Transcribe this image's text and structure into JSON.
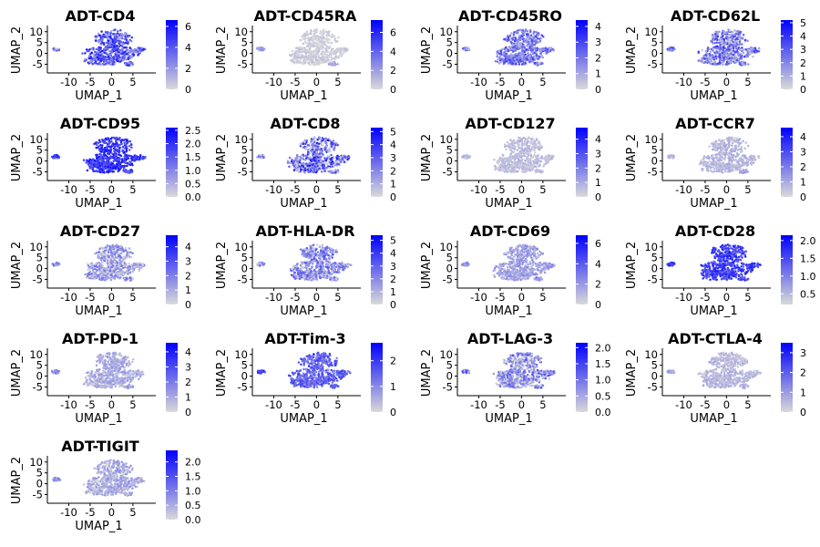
{
  "figure": {
    "domain": "UMAP feature plots of ADT markers"
  },
  "colors": {
    "low": "#d9d9d9",
    "high": "#0000ff",
    "axis": "#000000"
  },
  "chart_data": [
    {
      "type": "scatter",
      "title": "ADT-CD4",
      "xlabel": "UMAP_1",
      "ylabel": "UMAP_2",
      "xticks": [
        "-10",
        "-5",
        "0",
        "5"
      ],
      "yticks": [
        "10",
        "5",
        "0",
        "-5"
      ],
      "xlim": [
        -15,
        9.5
      ],
      "ylim": [
        -9,
        12
      ],
      "colorbar": {
        "min": 0,
        "max": 6.6,
        "ticks": [
          "6",
          "4",
          "2",
          "0"
        ],
        "tick_values": [
          6,
          4,
          2,
          0
        ]
      },
      "intensity": {
        "main": 0.55,
        "left": 0.3,
        "small": 0.45,
        "variation": 0.35
      }
    },
    {
      "type": "scatter",
      "title": "ADT-CD45RA",
      "xlabel": "UMAP_1",
      "ylabel": "UMAP_2",
      "xticks": [
        "-10",
        "-5",
        "0",
        "5"
      ],
      "yticks": [
        "10",
        "5",
        "0",
        "-5"
      ],
      "xlim": [
        -15,
        9.5
      ],
      "ylim": [
        -9,
        12
      ],
      "colorbar": {
        "min": 0,
        "max": 7.3,
        "ticks": [
          "6",
          "4",
          "2",
          "0"
        ],
        "tick_values": [
          6,
          4,
          2,
          0
        ]
      },
      "intensity": {
        "main": 0.05,
        "left": 0.3,
        "small": 0.2,
        "variation": 0.08
      }
    },
    {
      "type": "scatter",
      "title": "ADT-CD45RO",
      "xlabel": "UMAP_1",
      "ylabel": "UMAP_2",
      "xticks": [
        "-10",
        "-5",
        "0",
        "5"
      ],
      "yticks": [
        "10",
        "5",
        "0",
        "-5"
      ],
      "xlim": [
        -15,
        9.5
      ],
      "ylim": [
        -9,
        12
      ],
      "colorbar": {
        "min": 0,
        "max": 4.4,
        "ticks": [
          "4",
          "3",
          "2",
          "1",
          "0"
        ],
        "tick_values": [
          4,
          3,
          2,
          1,
          0
        ]
      },
      "intensity": {
        "main": 0.45,
        "left": 0.35,
        "small": 0.4,
        "variation": 0.3
      }
    },
    {
      "type": "scatter",
      "title": "ADT-CD62L",
      "xlabel": "UMAP_1",
      "ylabel": "UMAP_2",
      "xticks": [
        "-10",
        "-5",
        "0",
        "5"
      ],
      "yticks": [
        "10",
        "5",
        "0",
        "-5"
      ],
      "xlim": [
        -15,
        9.5
      ],
      "ylim": [
        -9,
        12
      ],
      "colorbar": {
        "min": 0,
        "max": 5.2,
        "ticks": [
          "5",
          "4",
          "3",
          "2",
          "1",
          "0"
        ],
        "tick_values": [
          5,
          4,
          3,
          2,
          1,
          0
        ]
      },
      "intensity": {
        "main": 0.4,
        "left": 0.35,
        "small": 0.45,
        "variation": 0.35
      }
    },
    {
      "type": "scatter",
      "title": "ADT-CD95",
      "xlabel": "UMAP_1",
      "ylabel": "UMAP_2",
      "xticks": [
        "-10",
        "-5",
        "0",
        "5"
      ],
      "yticks": [
        "10",
        "5",
        "0",
        "-5"
      ],
      "xlim": [
        -15,
        9.5
      ],
      "ylim": [
        -9,
        12
      ],
      "colorbar": {
        "min": 0,
        "max": 2.6,
        "ticks": [
          "2.5",
          "2.0",
          "1.5",
          "1.0",
          "0.5",
          "0.0"
        ],
        "tick_values": [
          2.5,
          2.0,
          1.5,
          1.0,
          0.5,
          0.0
        ]
      },
      "intensity": {
        "main": 0.75,
        "left": 0.65,
        "small": 0.6,
        "variation": 0.2
      }
    },
    {
      "type": "scatter",
      "title": "ADT-CD8",
      "xlabel": "UMAP_1",
      "ylabel": "UMAP_2",
      "xticks": [
        "-10",
        "-5",
        "0",
        "5"
      ],
      "yticks": [
        "10",
        "5",
        "0",
        "-5"
      ],
      "xlim": [
        -15,
        9.5
      ],
      "ylim": [
        -9,
        12
      ],
      "colorbar": {
        "min": 0,
        "max": 5.3,
        "ticks": [
          "5",
          "4",
          "3",
          "2",
          "1",
          "0"
        ],
        "tick_values": [
          5,
          4,
          3,
          2,
          1,
          0
        ]
      },
      "intensity": {
        "main": 0.45,
        "left": 0.3,
        "small": 0.4,
        "variation": 0.5
      }
    },
    {
      "type": "scatter",
      "title": "ADT-CD127",
      "xlabel": "UMAP_1",
      "ylabel": "UMAP_2",
      "xticks": [
        "-10",
        "-5",
        "0",
        "5"
      ],
      "yticks": [
        "10",
        "5",
        "0",
        "-5"
      ],
      "xlim": [
        -15,
        9.5
      ],
      "ylim": [
        -9,
        12
      ],
      "colorbar": {
        "min": 0,
        "max": 4.8,
        "ticks": [
          "4",
          "3",
          "2",
          "1",
          "0"
        ],
        "tick_values": [
          4,
          3,
          2,
          1,
          0
        ]
      },
      "intensity": {
        "main": 0.12,
        "left": 0.15,
        "small": 0.15,
        "variation": 0.08
      }
    },
    {
      "type": "scatter",
      "title": "ADT-CCR7",
      "xlabel": "UMAP_1",
      "ylabel": "UMAP_2",
      "xticks": [
        "-10",
        "-5",
        "0",
        "5"
      ],
      "yticks": [
        "10",
        "5",
        "0",
        "-5"
      ],
      "xlim": [
        -15,
        9.5
      ],
      "ylim": [
        -9,
        12
      ],
      "colorbar": {
        "min": 0,
        "max": 4.6,
        "ticks": [
          "4",
          "3",
          "2",
          "1",
          "0"
        ],
        "tick_values": [
          4,
          3,
          2,
          1,
          0
        ]
      },
      "intensity": {
        "main": 0.15,
        "left": 0.2,
        "small": 0.2,
        "variation": 0.1
      }
    },
    {
      "type": "scatter",
      "title": "ADT-CD27",
      "xlabel": "UMAP_1",
      "ylabel": "UMAP_2",
      "xticks": [
        "-10",
        "-5",
        "0",
        "5"
      ],
      "yticks": [
        "10",
        "5",
        "0",
        "-5"
      ],
      "xlim": [
        -15,
        9.5
      ],
      "ylim": [
        -9,
        12
      ],
      "colorbar": {
        "min": 0,
        "max": 4.8,
        "ticks": [
          "4",
          "3",
          "2",
          "1",
          "0"
        ],
        "tick_values": [
          4,
          3,
          2,
          1,
          0
        ]
      },
      "intensity": {
        "main": 0.25,
        "left": 0.35,
        "small": 0.3,
        "variation": 0.25
      }
    },
    {
      "type": "scatter",
      "title": "ADT-HLA-DR",
      "xlabel": "UMAP_1",
      "ylabel": "UMAP_2",
      "xticks": [
        "-10",
        "-5",
        "0",
        "5"
      ],
      "yticks": [
        "10",
        "5",
        "0",
        "-5"
      ],
      "xlim": [
        -15,
        9.5
      ],
      "ylim": [
        -9,
        12
      ],
      "colorbar": {
        "min": 0,
        "max": 5.4,
        "ticks": [
          "5",
          "4",
          "3",
          "2",
          "1",
          "0"
        ],
        "tick_values": [
          5,
          4,
          3,
          2,
          1,
          0
        ]
      },
      "intensity": {
        "main": 0.35,
        "left": 0.3,
        "small": 0.3,
        "variation": 0.3
      }
    },
    {
      "type": "scatter",
      "title": "ADT-CD69",
      "xlabel": "UMAP_1",
      "ylabel": "UMAP_2",
      "xticks": [
        "-10",
        "-5",
        "0",
        "5"
      ],
      "yticks": [
        "10",
        "5",
        "0",
        "-5"
      ],
      "xlim": [
        -15,
        9.5
      ],
      "ylim": [
        -9,
        12
      ],
      "colorbar": {
        "min": 0,
        "max": 6.8,
        "ticks": [
          "6",
          "4",
          "2",
          "0"
        ],
        "tick_values": [
          6,
          4,
          2,
          0
        ]
      },
      "intensity": {
        "main": 0.25,
        "left": 0.3,
        "small": 0.3,
        "variation": 0.15
      }
    },
    {
      "type": "scatter",
      "title": "ADT-CD28",
      "xlabel": "UMAP_1",
      "ylabel": "UMAP_2",
      "xticks": [
        "-10",
        "-5",
        "0",
        "5"
      ],
      "yticks": [
        "10",
        "5",
        "0",
        "-5"
      ],
      "xlim": [
        -15,
        9.5
      ],
      "ylim": [
        -9,
        12
      ],
      "colorbar": {
        "min": 0.2,
        "max": 2.15,
        "ticks": [
          "2.0",
          "1.5",
          "1.0",
          "0.5"
        ],
        "tick_values": [
          2.0,
          1.5,
          1.0,
          0.5
        ]
      },
      "intensity": {
        "main": 0.7,
        "left": 0.75,
        "small": 0.65,
        "variation": 0.2
      }
    },
    {
      "type": "scatter",
      "title": "ADT-PD-1",
      "xlabel": "UMAP_1",
      "ylabel": "UMAP_2",
      "xticks": [
        "-10",
        "-5",
        "0",
        "5"
      ],
      "yticks": [
        "10",
        "5",
        "0",
        "-5"
      ],
      "xlim": [
        -15,
        9.5
      ],
      "ylim": [
        -9,
        12
      ],
      "colorbar": {
        "min": 0,
        "max": 4.6,
        "ticks": [
          "4",
          "3",
          "2",
          "1",
          "0"
        ],
        "tick_values": [
          4,
          3,
          2,
          1,
          0
        ]
      },
      "intensity": {
        "main": 0.2,
        "left": 0.35,
        "small": 0.25,
        "variation": 0.12
      }
    },
    {
      "type": "scatter",
      "title": "ADT-Tim-3",
      "xlabel": "UMAP_1",
      "ylabel": "UMAP_2",
      "xticks": [
        "-10",
        "-5",
        "0",
        "5"
      ],
      "yticks": [
        "10",
        "5",
        "0",
        "-5"
      ],
      "xlim": [
        -15,
        9.5
      ],
      "ylim": [
        -9,
        12
      ],
      "colorbar": {
        "min": 0,
        "max": 2.7,
        "ticks": [
          "2",
          "1",
          "0"
        ],
        "tick_values": [
          2,
          1,
          0
        ]
      },
      "intensity": {
        "main": 0.55,
        "left": 0.7,
        "small": 0.5,
        "variation": 0.2
      }
    },
    {
      "type": "scatter",
      "title": "ADT-LAG-3",
      "xlabel": "UMAP_1",
      "ylabel": "UMAP_2",
      "xticks": [
        "-10",
        "-5",
        "0",
        "5"
      ],
      "yticks": [
        "10",
        "5",
        "0",
        "-5"
      ],
      "xlim": [
        -15,
        9.5
      ],
      "ylim": [
        -9,
        12
      ],
      "colorbar": {
        "min": 0,
        "max": 2.15,
        "ticks": [
          "2.0",
          "1.5",
          "1.0",
          "0.5",
          "0.0"
        ],
        "tick_values": [
          2.0,
          1.5,
          1.0,
          0.5,
          0.0
        ]
      },
      "intensity": {
        "main": 0.3,
        "left": 0.4,
        "small": 0.35,
        "variation": 0.35
      }
    },
    {
      "type": "scatter",
      "title": "ADT-CTLA-4",
      "xlabel": "UMAP_1",
      "ylabel": "UMAP_2",
      "xticks": [
        "-10",
        "-5",
        "0",
        "5"
      ],
      "yticks": [
        "10",
        "5",
        "0",
        "-5"
      ],
      "xlim": [
        -15,
        9.5
      ],
      "ylim": [
        -9,
        12
      ],
      "colorbar": {
        "min": 0,
        "max": 3.5,
        "ticks": [
          "3",
          "2",
          "1",
          "0"
        ],
        "tick_values": [
          3,
          2,
          1,
          0
        ]
      },
      "intensity": {
        "main": 0.15,
        "left": 0.25,
        "small": 0.2,
        "variation": 0.1
      }
    },
    {
      "type": "scatter",
      "title": "ADT-TIGIT",
      "xlabel": "UMAP_1",
      "ylabel": "UMAP_2",
      "xticks": [
        "-10",
        "-5",
        "0",
        "5"
      ],
      "yticks": [
        "10",
        "5",
        "0",
        "-5"
      ],
      "xlim": [
        -15,
        9.5
      ],
      "ylim": [
        -9,
        12
      ],
      "colorbar": {
        "min": 0,
        "max": 2.4,
        "ticks": [
          "2.0",
          "1.5",
          "1.0",
          "0.5",
          "0.0"
        ],
        "tick_values": [
          2.0,
          1.5,
          1.0,
          0.5,
          0.0
        ]
      },
      "intensity": {
        "main": 0.2,
        "left": 0.35,
        "small": 0.25,
        "variation": 0.15
      }
    }
  ]
}
